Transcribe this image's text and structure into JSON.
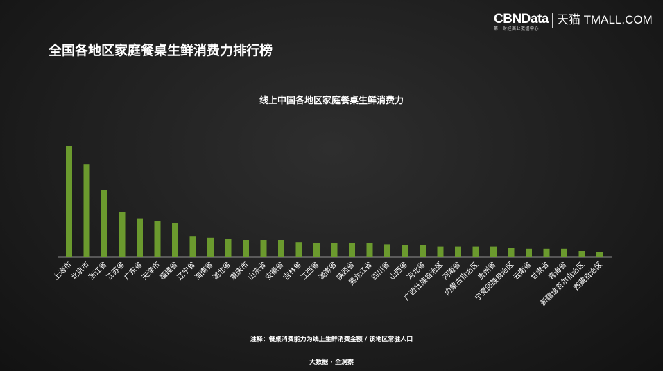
{
  "header": {
    "logo_text": "CBNData",
    "logo_subtext": "第一财经商业数据中心",
    "partner_logo": "天猫 TMALL.COM",
    "title": "全国各地区家庭餐桌生鲜消费力排行榜"
  },
  "chart_data": {
    "type": "bar",
    "title": "线上中国各地区家庭餐桌生鲜消费力",
    "xlabel": "",
    "ylabel": "",
    "color": "#6b9a2e",
    "categories": [
      "上海市",
      "北京市",
      "浙江省",
      "江苏省",
      "广东省",
      "天津市",
      "福建省",
      "辽宁省",
      "海南省",
      "湖北省",
      "重庆市",
      "山东省",
      "安徽省",
      "吉林省",
      "江西省",
      "湖南省",
      "陕西省",
      "黑龙江省",
      "四川省",
      "山西省",
      "河北省",
      "广西壮族自治区",
      "河南省",
      "内蒙古自治区",
      "贵州省",
      "宁夏回族自治区",
      "云南省",
      "甘肃省",
      "青海省",
      "新疆维吾尔自治区",
      "西藏自治区"
    ],
    "values": [
      100,
      83,
      60,
      40,
      34,
      32,
      30,
      18,
      17,
      16,
      15,
      15,
      15,
      13,
      12,
      12,
      12,
      12,
      11,
      10,
      10,
      9,
      9,
      9,
      9,
      8,
      7,
      7,
      7,
      5,
      4
    ],
    "ylim": [
      0,
      100
    ],
    "grid": false,
    "legend": "none"
  },
  "note": "注释：餐桌消费能力为线上生鲜消费金额 / 该地区常驻人口",
  "footer": "大数据 · 全洞察"
}
